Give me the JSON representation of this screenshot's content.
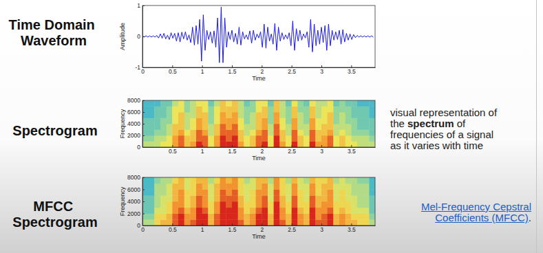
{
  "chart_data": [
    {
      "type": "line",
      "title": "Time Domain Waveform",
      "xlabel": "Time",
      "ylabel": "Amplitude",
      "color": "#1a1ae6",
      "xlim": [
        0,
        3.9
      ],
      "ylim": [
        -1,
        1
      ],
      "xticks": [
        0,
        0.5,
        1,
        1.5,
        2,
        2.5,
        3,
        3.5
      ],
      "yticks": [
        -1,
        0,
        1
      ],
      "x": [
        0,
        0.03,
        0.06,
        0.09,
        0.12,
        0.15,
        0.18,
        0.21,
        0.24,
        0.27,
        0.3,
        0.33,
        0.36,
        0.39,
        0.42,
        0.45,
        0.48,
        0.51,
        0.54,
        0.57,
        0.6,
        0.63,
        0.66,
        0.69,
        0.72,
        0.75,
        0.78,
        0.81,
        0.84,
        0.87,
        0.9,
        0.93,
        0.96,
        0.99,
        1.02,
        1.05,
        1.08,
        1.11,
        1.14,
        1.17,
        1.2,
        1.23,
        1.26,
        1.29,
        1.32,
        1.35,
        1.38,
        1.41,
        1.44,
        1.47,
        1.5,
        1.53,
        1.56,
        1.59,
        1.62,
        1.65,
        1.68,
        1.71,
        1.74,
        1.77,
        1.8,
        1.83,
        1.86,
        1.89,
        1.92,
        1.95,
        1.98,
        2.01,
        2.04,
        2.07,
        2.1,
        2.13,
        2.16,
        2.19,
        2.22,
        2.25,
        2.28,
        2.31,
        2.34,
        2.37,
        2.4,
        2.43,
        2.46,
        2.49,
        2.52,
        2.55,
        2.58,
        2.61,
        2.64,
        2.67,
        2.7,
        2.73,
        2.76,
        2.79,
        2.82,
        2.85,
        2.88,
        2.91,
        2.94,
        2.97,
        3,
        3.03,
        3.06,
        3.09,
        3.12,
        3.15,
        3.18,
        3.21,
        3.24,
        3.27,
        3.3,
        3.33,
        3.36,
        3.39,
        3.42,
        3.45,
        3.48,
        3.51,
        3.54,
        3.57,
        3.6,
        3.63,
        3.66,
        3.69,
        3.72,
        3.75,
        3.78,
        3.81,
        3.84,
        3.87
      ],
      "values": [
        0.02,
        -0.02,
        0.02,
        -0.02,
        0.02,
        -0.02,
        0.02,
        -0.02,
        0.03,
        -0.05,
        0.08,
        -0.06,
        0.1,
        -0.08,
        0.04,
        -0.1,
        0.12,
        -0.06,
        0.1,
        -0.15,
        0.12,
        -0.18,
        0.14,
        -0.08,
        0.15,
        -0.12,
        0.05,
        -0.2,
        0.3,
        -0.28,
        0.35,
        -0.25,
        0.55,
        -0.8,
        0.7,
        -0.45,
        0.2,
        -0.1,
        0.15,
        -0.22,
        0.18,
        -0.35,
        0.6,
        -0.85,
        0.95,
        -0.85,
        0.6,
        -0.35,
        0.15,
        -0.1,
        0.2,
        -0.18,
        0.1,
        -0.25,
        0.3,
        -0.28,
        0.15,
        -0.08,
        0.05,
        -0.1,
        0.18,
        -0.22,
        0.2,
        -0.12,
        0.08,
        -0.05,
        0.15,
        -0.35,
        0.4,
        -0.38,
        0.3,
        -0.15,
        0.08,
        -0.25,
        0.42,
        -0.45,
        0.3,
        -0.15,
        0.12,
        -0.1,
        0.05,
        -0.08,
        0.12,
        -0.3,
        0.5,
        -0.45,
        0.25,
        -0.15,
        0.2,
        -0.12,
        0.08,
        -0.05,
        0.15,
        -0.35,
        0.55,
        -0.5,
        0.4,
        -0.3,
        0.2,
        -0.25,
        0.3,
        -0.2,
        0.35,
        -0.45,
        0.4,
        -0.3,
        0.2,
        -0.12,
        0.15,
        -0.1,
        0.2,
        -0.25,
        0.22,
        -0.18,
        0.1,
        -0.12,
        0.08,
        -0.1,
        0.06,
        -0.04,
        0.03,
        -0.02,
        0.02,
        -0.02,
        0.02,
        -0.02,
        0.02,
        -0.02,
        0.02,
        -0.02
      ]
    },
    {
      "type": "heatmap",
      "title": "Spectrogram",
      "xlabel": "Time",
      "ylabel": "Frequency",
      "annotations": [
        "visual representation of the ",
        "spectrum",
        " of frequencies of a signal as it varies with time"
      ],
      "xlim": [
        0,
        3.9
      ],
      "ylim": [
        0,
        8000
      ],
      "xticks": [
        0.5,
        1,
        1.5,
        2,
        2.5,
        3,
        3.5
      ],
      "yticks": [
        0,
        2000,
        4000,
        6000,
        8000
      ],
      "x_bins": [
        0,
        0.1,
        0.2,
        0.3,
        0.4,
        0.5,
        0.6,
        0.7,
        0.8,
        0.9,
        1,
        1.1,
        1.2,
        1.3,
        1.4,
        1.5,
        1.6,
        1.7,
        1.8,
        1.9,
        2,
        2.1,
        2.2,
        2.3,
        2.4,
        2.5,
        2.6,
        2.7,
        2.8,
        2.9,
        3,
        3.1,
        3.2,
        3.3,
        3.4,
        3.5,
        3.6,
        3.7,
        3.8,
        3.9
      ],
      "y_bins": [
        0,
        1000,
        2000,
        3000,
        4000,
        5000,
        6000,
        7000,
        8000
      ],
      "z": [
        [
          0.4,
          0.4,
          0.4,
          0.5,
          0.5,
          0.7,
          0.8,
          0.6,
          0.7,
          0.9,
          0.8,
          0.5,
          0.7,
          0.9,
          0.9,
          0.9,
          0.7,
          0.5,
          0.6,
          0.8,
          0.9,
          0.5,
          0.9,
          0.7,
          0.5,
          0.9,
          0.6,
          0.5,
          0.9,
          0.7,
          0.7,
          0.8,
          0.5,
          0.6,
          0.5,
          0.5,
          0.4,
          0.4,
          0.4
        ],
        [
          0.3,
          0.3,
          0.4,
          0.4,
          0.5,
          0.7,
          0.8,
          0.6,
          0.6,
          0.8,
          0.8,
          0.5,
          0.7,
          0.9,
          0.8,
          0.9,
          0.6,
          0.5,
          0.6,
          0.8,
          0.8,
          0.5,
          0.9,
          0.6,
          0.5,
          0.8,
          0.6,
          0.5,
          0.8,
          0.6,
          0.7,
          0.8,
          0.5,
          0.6,
          0.5,
          0.4,
          0.4,
          0.4,
          0.3
        ],
        [
          0.2,
          0.2,
          0.3,
          0.3,
          0.4,
          0.6,
          0.7,
          0.5,
          0.6,
          0.8,
          0.7,
          0.4,
          0.6,
          0.8,
          0.8,
          0.8,
          0.6,
          0.4,
          0.5,
          0.7,
          0.8,
          0.4,
          0.8,
          0.6,
          0.4,
          0.8,
          0.5,
          0.4,
          0.8,
          0.6,
          0.6,
          0.7,
          0.4,
          0.5,
          0.4,
          0.3,
          0.3,
          0.3,
          0.2
        ],
        [
          0.2,
          0.2,
          0.2,
          0.3,
          0.4,
          0.6,
          0.6,
          0.4,
          0.5,
          0.7,
          0.6,
          0.4,
          0.6,
          0.8,
          0.7,
          0.8,
          0.5,
          0.4,
          0.4,
          0.6,
          0.7,
          0.4,
          0.8,
          0.5,
          0.4,
          0.7,
          0.4,
          0.4,
          0.7,
          0.5,
          0.6,
          0.6,
          0.4,
          0.4,
          0.4,
          0.3,
          0.2,
          0.2,
          0.2
        ],
        [
          0.2,
          0.2,
          0.2,
          0.3,
          0.3,
          0.5,
          0.6,
          0.4,
          0.5,
          0.7,
          0.6,
          0.3,
          0.5,
          0.7,
          0.7,
          0.7,
          0.5,
          0.3,
          0.4,
          0.6,
          0.7,
          0.3,
          0.7,
          0.5,
          0.3,
          0.7,
          0.4,
          0.3,
          0.7,
          0.5,
          0.5,
          0.6,
          0.3,
          0.4,
          0.3,
          0.3,
          0.2,
          0.2,
          0.2
        ],
        [
          0.1,
          0.1,
          0.2,
          0.2,
          0.3,
          0.5,
          0.6,
          0.4,
          0.4,
          0.6,
          0.6,
          0.3,
          0.5,
          0.7,
          0.6,
          0.7,
          0.4,
          0.3,
          0.4,
          0.6,
          0.6,
          0.3,
          0.7,
          0.4,
          0.3,
          0.6,
          0.4,
          0.3,
          0.6,
          0.4,
          0.5,
          0.6,
          0.3,
          0.4,
          0.3,
          0.2,
          0.2,
          0.2,
          0.1
        ],
        [
          0.1,
          0.1,
          0.2,
          0.2,
          0.3,
          0.5,
          0.5,
          0.3,
          0.4,
          0.6,
          0.5,
          0.3,
          0.5,
          0.6,
          0.6,
          0.6,
          0.4,
          0.3,
          0.3,
          0.5,
          0.6,
          0.3,
          0.6,
          0.4,
          0.3,
          0.6,
          0.3,
          0.3,
          0.6,
          0.4,
          0.5,
          0.5,
          0.3,
          0.3,
          0.3,
          0.2,
          0.2,
          0.2,
          0.1
        ],
        [
          0.1,
          0.1,
          0.1,
          0.2,
          0.2,
          0.4,
          0.5,
          0.3,
          0.4,
          0.5,
          0.5,
          0.2,
          0.4,
          0.6,
          0.5,
          0.6,
          0.4,
          0.2,
          0.3,
          0.5,
          0.5,
          0.2,
          0.6,
          0.4,
          0.2,
          0.5,
          0.3,
          0.2,
          0.5,
          0.4,
          0.4,
          0.5,
          0.2,
          0.3,
          0.2,
          0.2,
          0.1,
          0.1,
          0.1
        ]
      ]
    },
    {
      "type": "heatmap",
      "title": "MFCC Spectrogram",
      "xlabel": "Time",
      "ylabel": "Frequency",
      "annotations": [
        "Mel-Frequency Cepstral Coefficients (MFCC)",
        "."
      ],
      "xlim": [
        0,
        3.9
      ],
      "ylim": [
        0,
        8000
      ],
      "xticks": [
        0,
        0.5,
        1,
        1.5,
        2,
        2.5,
        3,
        3.5
      ],
      "yticks": [
        0,
        2000,
        4000,
        6000,
        8000
      ],
      "x_bins": [
        0,
        0.1,
        0.2,
        0.3,
        0.4,
        0.5,
        0.6,
        0.7,
        0.8,
        0.9,
        1,
        1.1,
        1.2,
        1.3,
        1.4,
        1.5,
        1.6,
        1.7,
        1.8,
        1.9,
        2,
        2.1,
        2.2,
        2.3,
        2.4,
        2.5,
        2.6,
        2.7,
        2.8,
        2.9,
        3,
        3.1,
        3.2,
        3.3,
        3.4,
        3.5,
        3.6,
        3.7,
        3.8,
        3.9
      ],
      "y_bins": [
        0,
        1000,
        2000,
        3000,
        4000,
        5000,
        6000,
        7000,
        8000
      ],
      "z": [
        [
          0.4,
          0.4,
          0.6,
          0.7,
          0.7,
          0.9,
          1,
          0.8,
          0.9,
          1,
          1,
          0.7,
          0.9,
          1,
          1,
          1,
          0.9,
          0.7,
          0.8,
          1,
          1,
          0.7,
          1,
          0.9,
          0.7,
          1,
          0.8,
          0.7,
          1,
          0.9,
          0.9,
          1,
          0.7,
          0.8,
          0.7,
          0.7,
          0.6,
          0.6,
          0.4
        ],
        [
          0.3,
          0.3,
          0.6,
          0.6,
          0.7,
          0.9,
          1,
          0.8,
          0.8,
          1,
          1,
          0.7,
          0.9,
          1,
          1,
          1,
          0.8,
          0.7,
          0.8,
          1,
          1,
          0.7,
          1,
          0.8,
          0.7,
          1,
          0.8,
          0.7,
          1,
          0.8,
          0.9,
          1,
          0.7,
          0.8,
          0.7,
          0.6,
          0.6,
          0.6,
          0.3
        ],
        [
          0.2,
          0.2,
          0.5,
          0.5,
          0.6,
          0.8,
          0.9,
          0.7,
          0.8,
          1,
          0.9,
          0.6,
          0.8,
          1,
          1,
          1,
          0.8,
          0.6,
          0.7,
          0.9,
          1,
          0.6,
          1,
          0.8,
          0.6,
          1,
          0.7,
          0.6,
          1,
          0.8,
          0.8,
          0.9,
          0.6,
          0.7,
          0.6,
          0.5,
          0.5,
          0.5,
          0.2
        ],
        [
          0.2,
          0.2,
          0.4,
          0.5,
          0.6,
          0.8,
          0.8,
          0.6,
          0.7,
          0.9,
          0.8,
          0.6,
          0.8,
          1,
          0.9,
          1,
          0.7,
          0.6,
          0.6,
          0.8,
          0.9,
          0.6,
          1,
          0.7,
          0.6,
          0.9,
          0.6,
          0.6,
          0.9,
          0.7,
          0.8,
          0.8,
          0.6,
          0.6,
          0.6,
          0.5,
          0.4,
          0.4,
          0.2
        ],
        [
          0.2,
          0.2,
          0.4,
          0.5,
          0.5,
          0.7,
          0.8,
          0.6,
          0.7,
          0.9,
          0.8,
          0.5,
          0.7,
          0.9,
          0.9,
          0.9,
          0.7,
          0.5,
          0.6,
          0.8,
          0.9,
          0.5,
          0.9,
          0.7,
          0.5,
          0.9,
          0.6,
          0.5,
          0.9,
          0.7,
          0.7,
          0.8,
          0.5,
          0.6,
          0.5,
          0.5,
          0.4,
          0.4,
          0.2
        ],
        [
          0.1,
          0.1,
          0.4,
          0.4,
          0.5,
          0.7,
          0.8,
          0.6,
          0.6,
          0.8,
          0.8,
          0.5,
          0.7,
          0.9,
          0.8,
          0.9,
          0.6,
          0.5,
          0.6,
          0.8,
          0.8,
          0.5,
          0.9,
          0.6,
          0.5,
          0.8,
          0.6,
          0.5,
          0.8,
          0.6,
          0.7,
          0.8,
          0.5,
          0.6,
          0.5,
          0.4,
          0.4,
          0.4,
          0.1
        ],
        [
          0.1,
          0.1,
          0.4,
          0.4,
          0.5,
          0.7,
          0.7,
          0.5,
          0.6,
          0.8,
          0.7,
          0.5,
          0.7,
          0.8,
          0.8,
          0.8,
          0.6,
          0.5,
          0.5,
          0.7,
          0.8,
          0.5,
          0.8,
          0.6,
          0.5,
          0.8,
          0.5,
          0.5,
          0.8,
          0.6,
          0.7,
          0.7,
          0.5,
          0.5,
          0.5,
          0.4,
          0.4,
          0.4,
          0.1
        ],
        [
          0.1,
          0.1,
          0.3,
          0.4,
          0.4,
          0.6,
          0.7,
          0.5,
          0.6,
          0.7,
          0.7,
          0.4,
          0.6,
          0.8,
          0.7,
          0.8,
          0.6,
          0.4,
          0.5,
          0.7,
          0.7,
          0.4,
          0.8,
          0.6,
          0.4,
          0.7,
          0.5,
          0.4,
          0.7,
          0.6,
          0.6,
          0.7,
          0.4,
          0.5,
          0.4,
          0.4,
          0.3,
          0.3,
          0.1
        ]
      ]
    }
  ]
}
